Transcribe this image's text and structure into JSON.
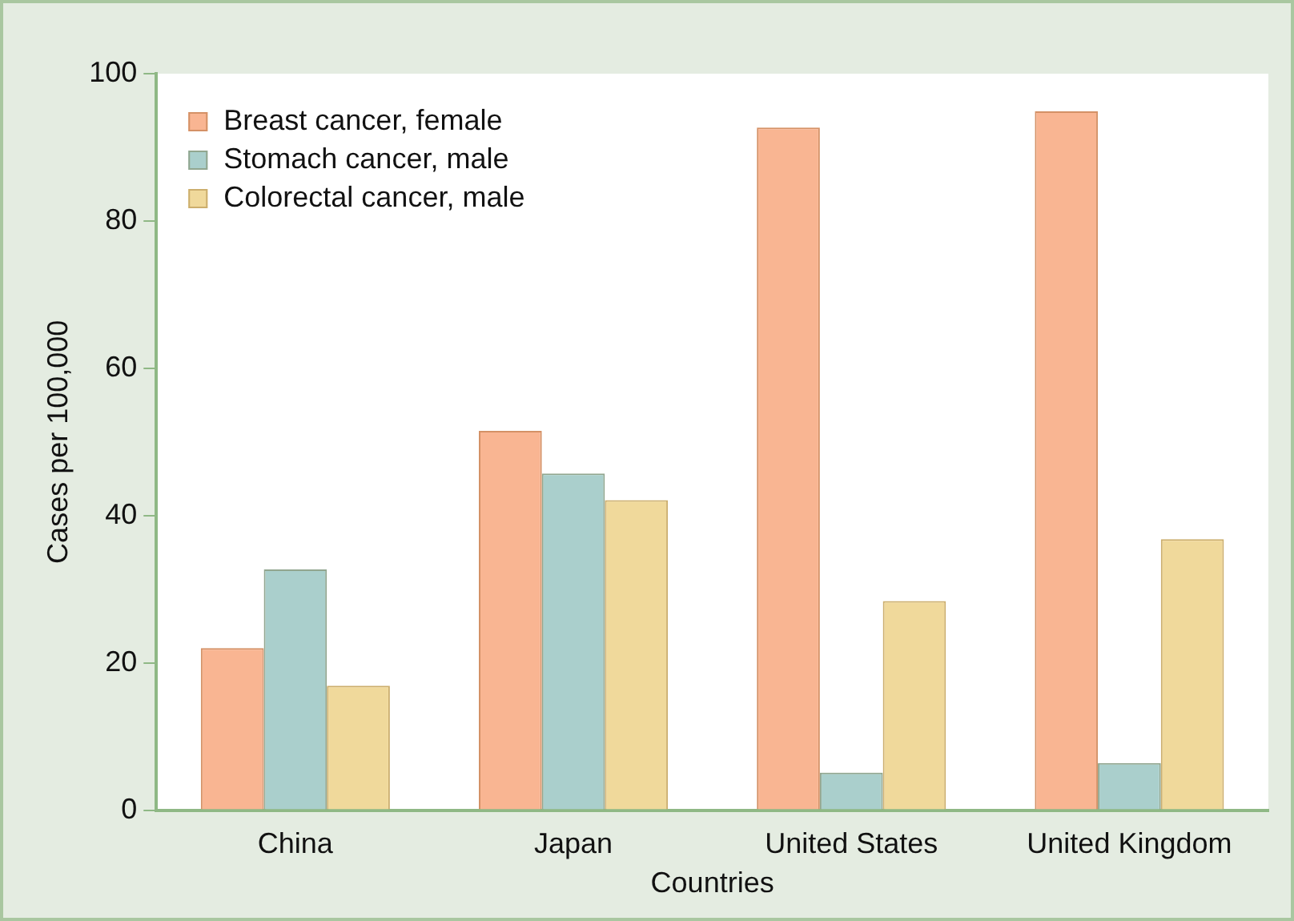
{
  "chart_data": {
    "type": "bar",
    "xlabel": "Countries",
    "ylabel": "Cases per 100,000",
    "categories": [
      "China",
      "Japan",
      "United States",
      "United Kingdom"
    ],
    "series": [
      {
        "name": "Breast cancer, female",
        "color": "#f9b592",
        "values": [
          22,
          51.5,
          92.7,
          94.9
        ]
      },
      {
        "name": "Stomach cancer, male",
        "color": "#aacfcc",
        "values": [
          32.7,
          45.7,
          5.1,
          6.4
        ]
      },
      {
        "name": "Colorectal cancer, male",
        "color": "#f0d99b",
        "values": [
          16.9,
          42.1,
          28.4,
          36.8
        ]
      }
    ],
    "ylim": [
      0,
      100
    ],
    "yticks": [
      0,
      20,
      40,
      60,
      80,
      100
    ],
    "grid": false,
    "legend": "top left"
  }
}
